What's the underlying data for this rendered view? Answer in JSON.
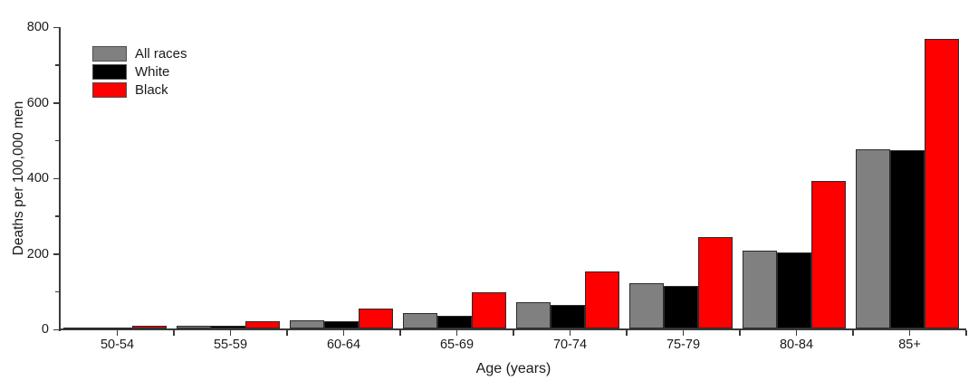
{
  "chart_data": {
    "type": "bar",
    "title": "",
    "xlabel": "Age (years)",
    "ylabel": "Deaths per 100,000 men",
    "categories": [
      "50-54",
      "55-59",
      "60-64",
      "65-69",
      "70-74",
      "75-79",
      "80-84",
      "85+"
    ],
    "series": [
      {
        "name": "All races",
        "color": "#808080",
        "values": [
          2,
          8,
          21,
          40,
          69,
          120,
          207,
          474
        ]
      },
      {
        "name": "White",
        "color": "#000000",
        "values": [
          2,
          6,
          18,
          34,
          63,
          112,
          200,
          472
        ]
      },
      {
        "name": "Black",
        "color": "#ff0000",
        "values": [
          8,
          20,
          52,
          96,
          151,
          241,
          390,
          766
        ]
      }
    ],
    "ylim": [
      0,
      800
    ],
    "y_major_ticks": [
      0,
      200,
      400,
      600,
      800
    ],
    "y_minor_ticks": [
      100,
      300,
      500,
      700
    ],
    "grid": false,
    "legend_position": "top-left",
    "axis_color": "#3a3a3a",
    "bar_border_color": "#2b2b2b",
    "background_color": "#ffffff"
  }
}
